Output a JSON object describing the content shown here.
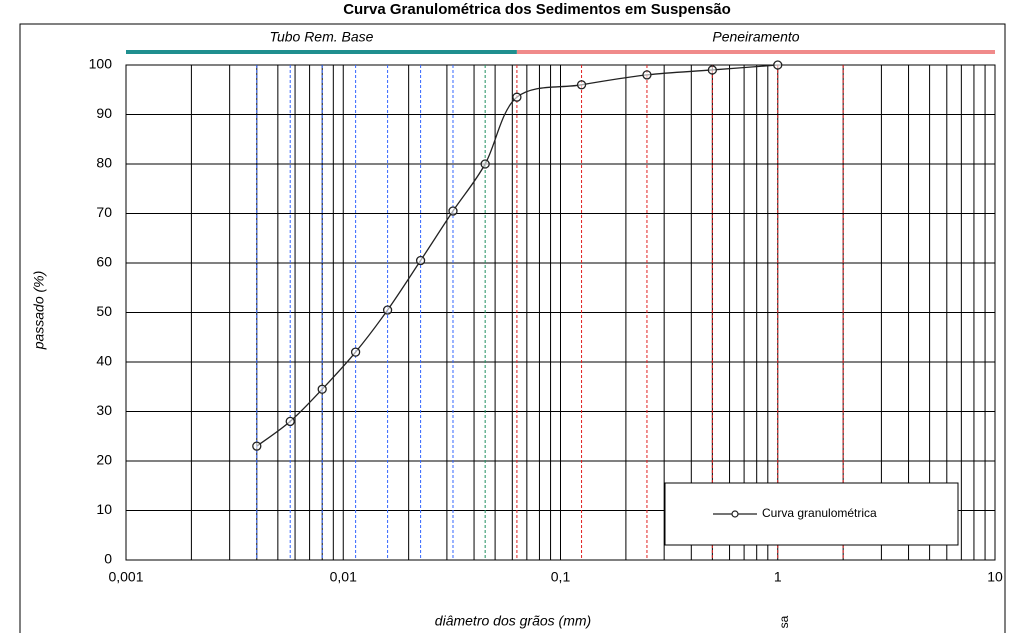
{
  "chart_data": {
    "type": "line",
    "title": "Curva Granulométrica dos Sedimentos em Suspensão",
    "x_label": "diâmetro dos grãos  (mm)",
    "y_label": "passado  (%)",
    "annotation": "sa",
    "log_x": true,
    "grid": true,
    "legend_position": "lower right",
    "xlim": [
      0.001,
      10
    ],
    "ylim": [
      0,
      100
    ],
    "xticks": [
      {
        "value": 0.001,
        "label": "0,001"
      },
      {
        "value": 0.01,
        "label": "0,01"
      },
      {
        "value": 0.1,
        "label": "0,1"
      },
      1,
      10
    ],
    "yticks": [
      0,
      10,
      20,
      30,
      40,
      50,
      60,
      70,
      80,
      90,
      100
    ],
    "bands": [
      {
        "label": "Tubo Rem. Base",
        "from": 0.001,
        "to": 0.063,
        "color": "#1f8f8f"
      },
      {
        "label": "Peneiramento",
        "from": 0.063,
        "to": 10,
        "color": "#f08a8a"
      }
    ],
    "reference_lines": [
      {
        "x": 0.004,
        "color": "#3366ff"
      },
      {
        "x": 0.0057,
        "color": "#3366ff"
      },
      {
        "x": 0.008,
        "color": "#3366ff"
      },
      {
        "x": 0.0114,
        "color": "#3366ff"
      },
      {
        "x": 0.016,
        "color": "#3366ff"
      },
      {
        "x": 0.0227,
        "color": "#3366ff"
      },
      {
        "x": 0.032,
        "color": "#3366ff"
      },
      {
        "x": 0.045,
        "color": "#1f8f5f"
      },
      {
        "x": 0.063,
        "color": "#e02020"
      },
      {
        "x": 0.125,
        "color": "#e02020"
      },
      {
        "x": 0.25,
        "color": "#e02020"
      },
      {
        "x": 0.5,
        "color": "#e02020"
      },
      {
        "x": 1,
        "color": "#e02020"
      },
      {
        "x": 2,
        "color": "#e02020"
      }
    ],
    "series": [
      {
        "name": "Curva granulométrica",
        "color": "#222222",
        "x": [
          0.004,
          0.0057,
          0.008,
          0.0114,
          0.016,
          0.0227,
          0.032,
          0.045,
          0.063,
          0.125,
          0.25,
          0.5,
          1
        ],
        "values": [
          23,
          28,
          34.5,
          42,
          50.5,
          60.5,
          70.5,
          80,
          93.5,
          96,
          98,
          99,
          100
        ]
      }
    ]
  }
}
